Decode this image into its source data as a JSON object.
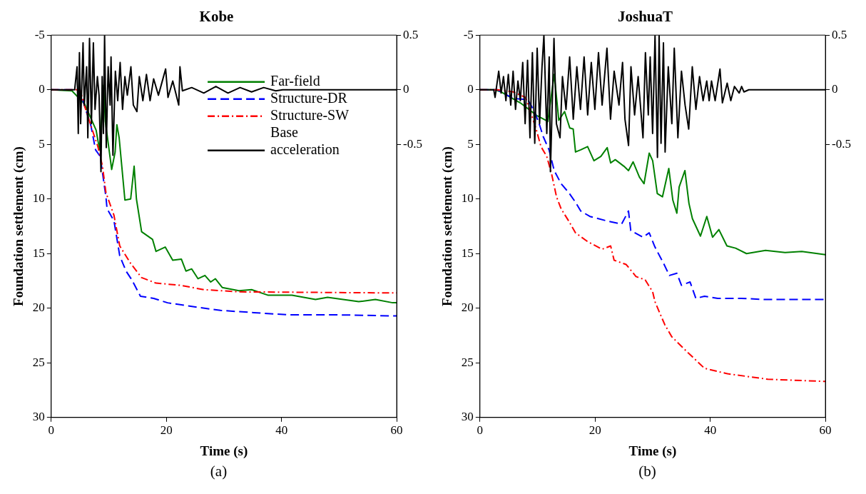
{
  "chart_data": [
    {
      "type": "line",
      "title": "Kobe",
      "xlabel": "Time (s)",
      "ylabel": "Foundation settlement (cm)",
      "xlim": [
        0,
        60
      ],
      "xticks": [
        0,
        20,
        40,
        60
      ],
      "ylim": [
        30,
        -5
      ],
      "yticks": [
        -5,
        0,
        5,
        10,
        15,
        20,
        25,
        30
      ],
      "y2lim": [
        -3,
        0.5
      ],
      "y2ticks": [
        0.5,
        0,
        -0.5
      ],
      "grid": false,
      "marker": "none",
      "legend": "right",
      "annotations": [
        "(a)"
      ],
      "series": [
        {
          "name": "Far-field",
          "color": "#008000",
          "line_style": "solid",
          "x": [
            0,
            3.6,
            5.8,
            7.8,
            8.4,
            9.1,
            9.4,
            10.5,
            11.1,
            11.4,
            11.8,
            12.8,
            13.8,
            14.4,
            14.8,
            15.7,
            17.6,
            18.2,
            19.8,
            21.1,
            22.6,
            23.4,
            24.4,
            25.5,
            26.7,
            27.7,
            28.5,
            29.7,
            32.6,
            34.8,
            37.6,
            41.8,
            45.9,
            48,
            53.4,
            56.3,
            59.3,
            60
          ],
          "values": [
            0,
            0.1,
            1.3,
            3.7,
            5.5,
            -0.4,
            2.9,
            7.3,
            5.7,
            3.2,
            4.4,
            10.1,
            10,
            7,
            10,
            13,
            13.7,
            14.8,
            14.4,
            15.6,
            15.5,
            16.6,
            16.4,
            17.3,
            17,
            17.6,
            17.3,
            18.1,
            18.4,
            18.3,
            18.8,
            18.8,
            19.2,
            19,
            19.4,
            19.2,
            19.5,
            19.5
          ]
        },
        {
          "name": "Structure-DR",
          "color": "#0000ff",
          "line_style": "dashed",
          "x": [
            0,
            5,
            5.8,
            6.9,
            7.7,
            8.5,
            9.5,
            9.7,
            10.9,
            11.9,
            13,
            14,
            15.5,
            17.8,
            20.2,
            24,
            29.4,
            35.2,
            41,
            49.3,
            59.3,
            60
          ],
          "values": [
            0,
            0,
            1.5,
            3.3,
            5.5,
            6.1,
            9.8,
            10.9,
            12,
            15.2,
            16.6,
            17.4,
            18.9,
            19.1,
            19.5,
            19.8,
            20.2,
            20.4,
            20.6,
            20.6,
            20.7,
            20.7
          ]
        },
        {
          "name": "Structure-SW",
          "color": "#ff0000",
          "line_style": "dashdot",
          "x": [
            0,
            5,
            5.8,
            6.9,
            8.1,
            8.9,
            9.5,
            10.9,
            11.9,
            13.8,
            15.7,
            18.2,
            22.4,
            26.5,
            32.6,
            59.3,
            60
          ],
          "values": [
            0,
            0,
            1.5,
            3.3,
            5.2,
            7,
            9.4,
            11.5,
            14.3,
            15.9,
            17.2,
            17.7,
            17.9,
            18.3,
            18.5,
            18.6,
            18.6
          ]
        },
        {
          "name": "Base acceleration",
          "color": "#000000",
          "line_style": "solid",
          "axis": "y2",
          "x": [
            0,
            4.07,
            4.49,
            4.7,
            4.9,
            5.11,
            5.53,
            5.74,
            6.15,
            6.36,
            6.65,
            6.98,
            7.32,
            7.61,
            8.02,
            8.31,
            8.64,
            8.85,
            9.06,
            9.27,
            9.56,
            9.89,
            10.23,
            10.39,
            10.72,
            11.14,
            11.55,
            11.97,
            12.39,
            12.8,
            13.22,
            13.84,
            14.26,
            14.88,
            15.3,
            15.92,
            16.54,
            17.17,
            17.79,
            18.62,
            19.87,
            20.28,
            21.11,
            22.15,
            22.36,
            22.78,
            24.4,
            26.5,
            28.6,
            30.7,
            32.8,
            34.8,
            36.9,
            39,
            40.2,
            60
          ],
          "values": [
            0,
            0,
            0.21,
            -0.4,
            0.34,
            -0.31,
            0.43,
            -0.14,
            0.21,
            -0.44,
            0.47,
            -0.31,
            0.43,
            -0.18,
            0.12,
            -0.05,
            -0.75,
            0.12,
            -0.4,
            0.5,
            -0.53,
            0.21,
            -0.14,
            0.3,
            -0.6,
            0.17,
            -0.1,
            0.25,
            -0.18,
            0.12,
            -0.05,
            0.21,
            -0.14,
            -0.2,
            0.12,
            -0.1,
            0.14,
            -0.1,
            0.1,
            -0.05,
            0.19,
            -0.07,
            0.08,
            -0.14,
            0.21,
            -0.01,
            0.02,
            -0.03,
            0.03,
            -0.03,
            0.02,
            -0.02,
            0.02,
            -0.01,
            0,
            0
          ]
        }
      ]
    },
    {
      "type": "line",
      "title": "JoshuaT",
      "xlabel": "Time (s)",
      "ylabel": "Foundation settlement (cm)",
      "xlim": [
        0,
        60
      ],
      "xticks": [
        0,
        20,
        40,
        60
      ],
      "ylim": [
        30,
        -5
      ],
      "yticks": [
        -5,
        0,
        5,
        10,
        15,
        20,
        25,
        30
      ],
      "y2lim": [
        -3,
        0.5
      ],
      "y2ticks": [
        0.5,
        0,
        -0.5
      ],
      "grid": false,
      "marker": "none",
      "annotations": [
        "(b)"
      ],
      "series": [
        {
          "color": "#008000",
          "line_style": "solid",
          "x": [
            0,
            2.6,
            3.7,
            7,
            10,
            11.8,
            12.9,
            13.7,
            14.7,
            15.6,
            16.2,
            16.6,
            17.5,
            18.7,
            19.8,
            21,
            22.1,
            22.7,
            23.5,
            25,
            25.8,
            26.6,
            27.7,
            28.5,
            29.4,
            30,
            30.8,
            31.7,
            32.8,
            33.5,
            34.2,
            34.6,
            35.6,
            36.3,
            36.9,
            38.3,
            39.4,
            40.4,
            41.5,
            42.9,
            44.4,
            46.3,
            49.6,
            53,
            55.9,
            60
          ],
          "values": [
            0,
            0,
            0.2,
            1.2,
            2.4,
            2.9,
            -1.4,
            2.8,
            2,
            3.5,
            3.6,
            5.7,
            5.5,
            5.2,
            6.5,
            6.1,
            5.3,
            6.7,
            6.4,
            7,
            7.4,
            6.6,
            8,
            8.6,
            5.8,
            6.5,
            9.5,
            9.8,
            7.2,
            10.1,
            11.3,
            8.9,
            7.4,
            10.4,
            11.8,
            13.4,
            11.6,
            13.5,
            12.8,
            14.3,
            14.5,
            15,
            14.7,
            14.9,
            14.8,
            15.1
          ]
        },
        {
          "color": "#0000ff",
          "line_style": "dashed",
          "x": [
            0,
            3,
            5.8,
            8.3,
            9.5,
            10.4,
            11,
            12,
            12.9,
            14.1,
            15.4,
            16.6,
            17.5,
            19.1,
            22,
            24.6,
            25.8,
            26.2,
            28.3,
            29.4,
            30.4,
            31.9,
            32.9,
            34.2,
            35,
            36.5,
            37.5,
            39,
            41.3,
            45.4,
            49.6,
            58.8,
            60
          ],
          "values": [
            0,
            0,
            0.8,
            0.9,
            2,
            3.3,
            4.3,
            5.5,
            7.4,
            8.6,
            9.4,
            10.3,
            11.1,
            11.6,
            12,
            12.3,
            11.1,
            12.9,
            13.5,
            13.1,
            14.4,
            15.9,
            17,
            16.8,
            17.9,
            17.6,
            19.1,
            18.9,
            19.1,
            19.1,
            19.2,
            19.2,
            19.2
          ]
        },
        {
          "color": "#ff0000",
          "line_style": "dashdot",
          "x": [
            0,
            3,
            5.8,
            7.9,
            8.9,
            9.7,
            10.6,
            11.6,
            12.4,
            13.3,
            14.1,
            15.4,
            16.6,
            18.7,
            21.2,
            22.7,
            23.3,
            25.4,
            27.1,
            28.7,
            30,
            30.4,
            31.2,
            32.1,
            33.3,
            36,
            39,
            43,
            50,
            60
          ],
          "values": [
            0,
            0,
            0.2,
            0.7,
            2.2,
            3.5,
            5.2,
            6.1,
            7.6,
            9.8,
            10.9,
            12,
            13.1,
            13.9,
            14.6,
            14.3,
            15.6,
            16,
            17.1,
            17.4,
            18.5,
            19.4,
            20.4,
            21.5,
            22.6,
            24,
            25.5,
            26,
            26.5,
            26.7
          ]
        },
        {
          "color": "#000000",
          "line_style": "solid",
          "axis": "y2",
          "x": [
            0,
            2.4,
            2.63,
            3.26,
            3.68,
            4.09,
            4.51,
            4.93,
            5.35,
            5.76,
            6.18,
            6.6,
            7.02,
            7.43,
            7.85,
            8.27,
            8.69,
            9.11,
            9.52,
            9.94,
            10.36,
            10.78,
            11.11,
            11.61,
            12.03,
            12.24,
            12.86,
            13.28,
            13.91,
            14.33,
            14.95,
            15.58,
            16.21,
            16.83,
            17.46,
            18.09,
            18.71,
            19.34,
            19.96,
            20.59,
            21.22,
            22.06,
            22.68,
            23.31,
            24.15,
            24.77,
            25.19,
            25.81,
            26.23,
            26.86,
            27.48,
            28.32,
            28.74,
            29.24,
            29.57,
            29.99,
            30.41,
            30.83,
            31.12,
            31.45,
            31.87,
            32.16,
            32.71,
            33.33,
            33.75,
            34.38,
            35,
            35.63,
            36.26,
            36.88,
            37.51,
            38.14,
            38.76,
            39.39,
            39.81,
            40.22,
            40.85,
            41.69,
            42.11,
            42.94,
            43.57,
            44.2,
            45.03,
            45.45,
            45.86,
            46.7,
            60
          ],
          "values": [
            0,
            0,
            -0.07,
            0.17,
            -0.03,
            0.12,
            -0.1,
            0.14,
            -0.14,
            0.17,
            -0.18,
            0.08,
            -0.1,
            0.25,
            -0.31,
            0.27,
            -0.44,
            0.34,
            -0.49,
            0.38,
            -0.31,
            0.21,
            0.5,
            -0.4,
            0.3,
            -0.75,
            0.47,
            -0.31,
            -0.44,
            0.12,
            -0.18,
            0.3,
            -0.27,
            0.21,
            -0.18,
            0.3,
            -0.23,
            0.25,
            -0.18,
            0.34,
            -0.14,
            0.38,
            -0.27,
            0.17,
            -0.14,
            0.25,
            -0.27,
            -0.51,
            0.21,
            -0.23,
            0.12,
            -0.44,
            0.34,
            -0.23,
            0.3,
            -0.4,
            0.5,
            -0.62,
            0.5,
            -0.49,
            0.43,
            -0.57,
            0.21,
            -0.31,
            0.38,
            -0.44,
            0.17,
            -0.14,
            -0.36,
            0.21,
            -0.18,
            0.12,
            -0.1,
            0.08,
            -0.1,
            0.08,
            -0.1,
            0.19,
            -0.12,
            0.06,
            -0.1,
            0.03,
            -0.03,
            0.03,
            -0.02,
            0,
            0
          ]
        }
      ]
    }
  ]
}
